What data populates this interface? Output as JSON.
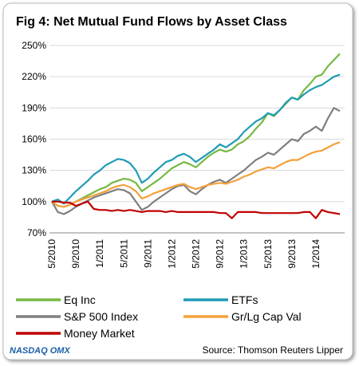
{
  "chart_data": {
    "type": "line",
    "title": "Fig 4: Net Mutual Fund Flows by Asset Class",
    "source": "Source: Thomson Reuters Lipper",
    "logo": "NASDAQ OMX",
    "categories": [
      "5/2010",
      null,
      null,
      null,
      "9/2010",
      null,
      null,
      null,
      "1/2011",
      null,
      null,
      null,
      "5/2011",
      null,
      null,
      null,
      "9/2011",
      null,
      null,
      null,
      "1/2012",
      null,
      null,
      null,
      "5/2012",
      null,
      null,
      null,
      "9/2012",
      null,
      null,
      null,
      "1/2013",
      null,
      null,
      null,
      "5/2013",
      null,
      null,
      null,
      "9/2013",
      null,
      null,
      null,
      "1/2014",
      null,
      null,
      null,
      null
    ],
    "series": [
      {
        "name": "Eq Inc",
        "color": "#77b843",
        "values": [
          100,
          96,
          95,
          97,
          100,
          103,
          106,
          109,
          112,
          114,
          118,
          120,
          122,
          121,
          118,
          110,
          114,
          118,
          122,
          127,
          132,
          135,
          138,
          136,
          133,
          138,
          143,
          147,
          150,
          148,
          150,
          155,
          158,
          163,
          170,
          176,
          185,
          182,
          188,
          194,
          200,
          198,
          207,
          213,
          220,
          222,
          230,
          236,
          242
        ]
      },
      {
        "name": "ETFs",
        "color": "#1f9bb3",
        "values": [
          100,
          102,
          98,
          104,
          110,
          115,
          120,
          126,
          130,
          135,
          138,
          141,
          140,
          137,
          130,
          118,
          122,
          128,
          133,
          138,
          140,
          144,
          146,
          143,
          138,
          142,
          146,
          150,
          155,
          152,
          156,
          160,
          167,
          172,
          177,
          180,
          185,
          183,
          188,
          195,
          200,
          198,
          203,
          207,
          210,
          212,
          216,
          220,
          222
        ]
      },
      {
        "name": "S&P 500 Index",
        "color": "#7f7f7f",
        "values": [
          100,
          90,
          88,
          91,
          95,
          98,
          101,
          104,
          106,
          108,
          110,
          112,
          111,
          108,
          100,
          92,
          95,
          100,
          104,
          108,
          112,
          115,
          116,
          110,
          107,
          112,
          116,
          119,
          121,
          118,
          122,
          126,
          130,
          135,
          140,
          143,
          147,
          145,
          150,
          155,
          160,
          158,
          165,
          168,
          172,
          168,
          180,
          190,
          187
        ]
      },
      {
        "name": "Gr/Lg Cap Val",
        "color": "#f5a03a",
        "values": [
          100,
          96,
          95,
          97,
          100,
          102,
          104,
          106,
          108,
          110,
          113,
          115,
          116,
          114,
          110,
          103,
          105,
          108,
          110,
          112,
          114,
          116,
          117,
          114,
          112,
          114,
          116,
          117,
          118,
          117,
          119,
          121,
          124,
          126,
          129,
          131,
          133,
          132,
          135,
          138,
          140,
          140,
          143,
          146,
          148,
          149,
          152,
          155,
          157
        ]
      },
      {
        "name": "Money Market",
        "color": "#c00000",
        "values": [
          100,
          100,
          99,
          99,
          96,
          98,
          100,
          93,
          92,
          92,
          91,
          92,
          91,
          92,
          91,
          90,
          91,
          91,
          91,
          90,
          91,
          90,
          90,
          90,
          90,
          90,
          90,
          90,
          89,
          89,
          84,
          90,
          90,
          90,
          90,
          89,
          89,
          89,
          89,
          89,
          89,
          89,
          90,
          90,
          84,
          92,
          90,
          89,
          88
        ]
      }
    ],
    "ylim": [
      70,
      250
    ],
    "yticks": [
      {
        "value": 70,
        "label": "70%"
      },
      {
        "value": 100,
        "label": "100%"
      },
      {
        "value": 130,
        "label": "130%"
      },
      {
        "value": 160,
        "label": "160%"
      },
      {
        "value": 190,
        "label": "190%"
      },
      {
        "value": 220,
        "label": "220%"
      },
      {
        "value": 250,
        "label": "250%"
      }
    ],
    "grid": true,
    "legend": "bottom"
  }
}
